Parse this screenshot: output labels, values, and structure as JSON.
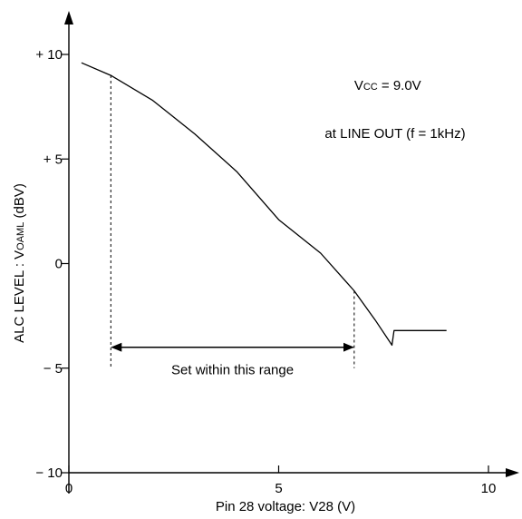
{
  "chart_data": {
    "type": "line",
    "xlabel": "Pin 28 voltage: V28 (V)",
    "ylabel": {
      "prefix": "ALC  LEVEL : V",
      "sub": "OAML",
      "suffix": "  (dBV)"
    },
    "xlim": [
      0,
      10
    ],
    "ylim": [
      -10,
      10
    ],
    "x_ticks": [
      {
        "value": 0,
        "label": "0"
      },
      {
        "value": 5,
        "label": "5"
      },
      {
        "value": 10,
        "label": "10"
      }
    ],
    "y_ticks": [
      {
        "value": 10,
        "label": "+ 10"
      },
      {
        "value": 5,
        "label": "+ 5"
      },
      {
        "value": 0,
        "label": "0"
      },
      {
        "value": -5,
        "label": "− 5"
      },
      {
        "value": -10,
        "label": "− 10"
      }
    ],
    "grid": false,
    "series": [
      {
        "x": [
          0.3,
          1.0,
          2.0,
          3.0,
          4.0,
          5.0,
          6.0,
          6.8,
          7.3,
          7.7,
          7.75,
          7.9,
          9.0
        ],
        "y": [
          9.6,
          9.0,
          7.8,
          6.2,
          4.4,
          2.1,
          0.5,
          -1.3,
          -2.7,
          -3.9,
          -3.2,
          -3.2,
          -3.2
        ]
      }
    ],
    "reference_lines": [
      {
        "x": 1.0,
        "y_from": -5.0,
        "y_to": 9.0
      },
      {
        "x": 6.8,
        "y_from": -5.0,
        "y_to": -1.3
      }
    ],
    "range_arrow": {
      "x_from": 1.0,
      "x_to": 6.8,
      "y": -4.0,
      "label": "Set within this range"
    },
    "annotations": [
      {
        "prefix": "V",
        "sub": "CC",
        "suffix": " = 9.0V",
        "x": 6.8,
        "y": 8.3
      },
      {
        "prefix": "at  LINE  OUT (f = 1kHz)",
        "x": 6.1,
        "y": 6.0
      }
    ]
  }
}
